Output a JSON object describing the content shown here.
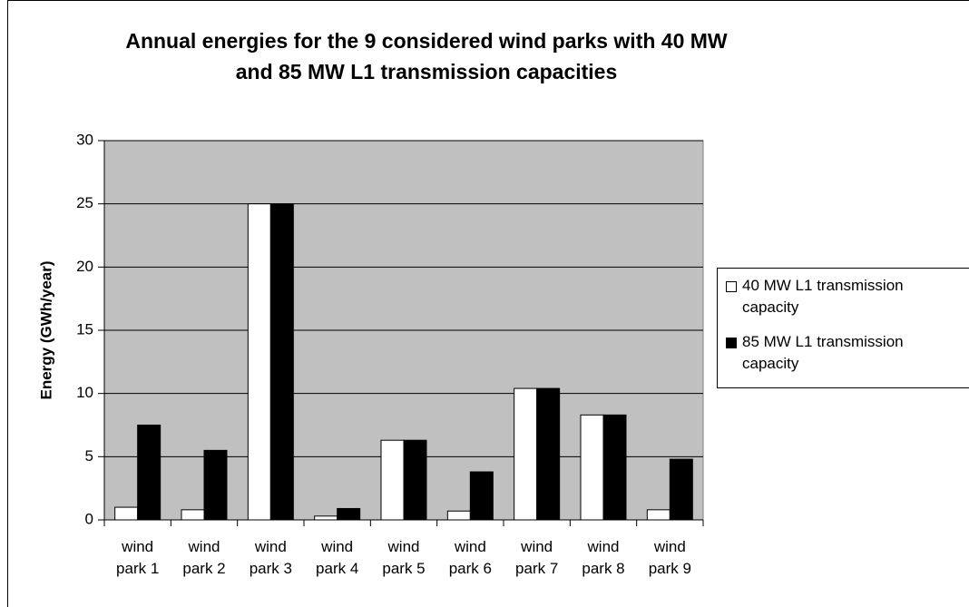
{
  "chart_data": {
    "type": "bar",
    "title": "Annual energies for the 9 considered wind parks with 40 MW and 85 MW L1 transmission capacities",
    "y_label": "Energy (GWh/year)",
    "categories": [
      "wind park 1",
      "wind park 2",
      "wind park 3",
      "wind park 4",
      "wind park 5",
      "wind park 6",
      "wind park 7",
      "wind park 8",
      "wind park 9"
    ],
    "series": [
      {
        "name": "40 MW L1 transmission capacity",
        "color": "#ffffff",
        "values": [
          1.0,
          0.8,
          25,
          0.3,
          6.3,
          0.7,
          10.4,
          8.3,
          0.8
        ]
      },
      {
        "name": "85 MW L1 transmission capacity",
        "color": "#000000",
        "values": [
          7.5,
          5.5,
          25,
          0.9,
          6.3,
          3.8,
          10.4,
          8.3,
          4.8
        ]
      }
    ],
    "ylim": [
      0,
      30
    ],
    "yticks": [
      0,
      5,
      10,
      15,
      20,
      25,
      30
    ],
    "grid": true,
    "plot_background": "#c0c0c0",
    "legend": "right"
  }
}
